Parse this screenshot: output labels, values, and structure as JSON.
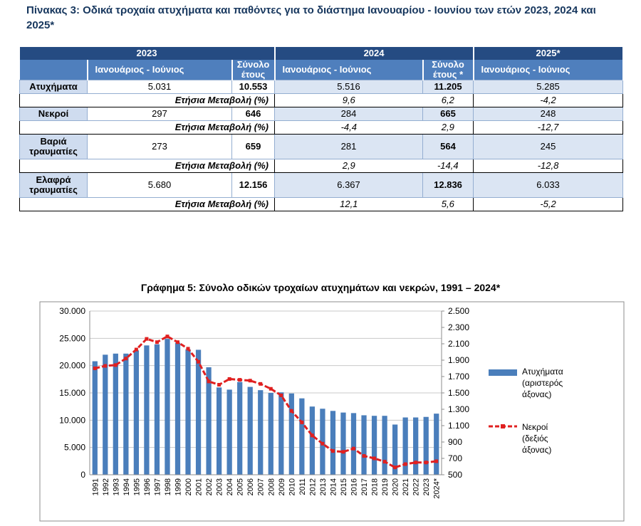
{
  "caption": "Πίνακας 3: Οδικά τροχαία ατυχήματα και παθόντες για το διάστημα Ιανουαρίου - Ιουνίου των ετών 2023, 2024 και 2025*",
  "table": {
    "years": [
      "2023",
      "2024",
      "2025*"
    ],
    "sub": {
      "period": "Ιανουάριος -   Ιούνιος",
      "total_2023": "Σύνολο έτους",
      "total_2024": "Σύνολο έτους *"
    },
    "change_label": "Ετήσια Μεταβολή (%)",
    "rows": [
      {
        "label": "Ατυχήματα",
        "h2023": "5.031",
        "t2023": "10.553",
        "h2024": "5.516",
        "t2024": "11.205",
        "h2025": "5.285",
        "c_h2024": "9,6",
        "c_t2024": "6,2",
        "c_h2025": "-4,2"
      },
      {
        "label": "Νεκροί",
        "h2023": "297",
        "t2023": "646",
        "h2024": "284",
        "t2024": "665",
        "h2025": "248",
        "c_h2024": "-4,4",
        "c_t2024": "2,9",
        "c_h2025": "-12,7"
      },
      {
        "label": "Βαριά τραυματίες",
        "h2023": "273",
        "t2023": "659",
        "h2024": "281",
        "t2024": "564",
        "h2025": "245",
        "c_h2024": "2,9",
        "c_t2024": "-14,4",
        "c_h2025": "-12,8"
      },
      {
        "label": "Ελαφρά τραυματίες",
        "h2023": "5.680",
        "t2023": "12.156",
        "h2024": "6.367",
        "t2024": "12.836",
        "h2025": "6.033",
        "c_h2024": "12,1",
        "c_t2024": "5,6",
        "c_h2025": "-5,2"
      }
    ]
  },
  "chart_data": {
    "type": "bar",
    "title": "Γράφημα 5: Σύνολο οδικών τροχαίων ατυχημάτων και νεκρών, 1991 – 2024*",
    "categories": [
      "1991",
      "1992",
      "1993",
      "1994",
      "1995",
      "1996",
      "1997",
      "1998",
      "1999",
      "2000",
      "2001",
      "2002",
      "2003",
      "2004",
      "2005",
      "2006",
      "2007",
      "2008",
      "2009",
      "2010",
      "2011",
      "2012",
      "2013",
      "2014",
      "2015",
      "2016",
      "2017",
      "2018",
      "2019",
      "2020",
      "2021",
      "2022",
      "2023",
      "2024*"
    ],
    "series": [
      {
        "name": "Ατυχήματα (αριστερός άξονας)",
        "type": "bar",
        "axis": "left",
        "color": "#4a7ebb",
        "values": [
          20800,
          22000,
          22200,
          22200,
          22800,
          23700,
          23900,
          24900,
          24200,
          23000,
          22900,
          19700,
          16000,
          15600,
          17000,
          16100,
          15500,
          15000,
          15100,
          14900,
          14000,
          12500,
          12100,
          11700,
          11400,
          11300,
          10900,
          10800,
          10800,
          9200,
          10500,
          10500,
          10600,
          11200
        ]
      },
      {
        "name": "Νεκροί (δεξιός άξονας)",
        "type": "line",
        "axis": "right",
        "color": "#e02020",
        "values": [
          1800,
          1830,
          1840,
          1920,
          2030,
          2160,
          2120,
          2190,
          2120,
          2040,
          1880,
          1640,
          1600,
          1670,
          1660,
          1650,
          1610,
          1550,
          1470,
          1280,
          1140,
          980,
          880,
          790,
          780,
          820,
          730,
          700,
          660,
          590,
          630,
          650,
          650,
          665
        ]
      }
    ],
    "left_axis": {
      "ylim": [
        0,
        30000
      ],
      "ticks": [
        "0",
        "5.000",
        "10.000",
        "15.000",
        "20.000",
        "25.000",
        "30.000"
      ]
    },
    "right_axis": {
      "ylim": [
        500,
        2500
      ],
      "ticks": [
        "500",
        "700",
        "900",
        "1.100",
        "1.300",
        "1.500",
        "1.700",
        "1.900",
        "2.100",
        "2.300",
        "2.500"
      ]
    },
    "legend_position": "right",
    "grid": true
  }
}
